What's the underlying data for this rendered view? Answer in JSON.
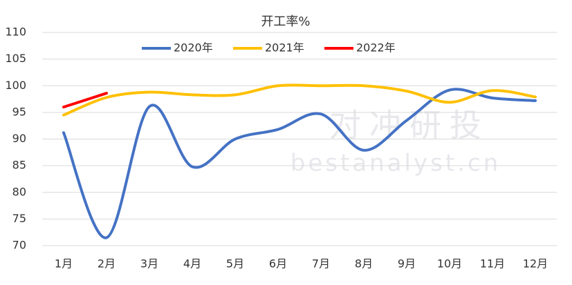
{
  "chart_data": {
    "type": "line",
    "title": "开工率%",
    "categories": [
      "1月",
      "2月",
      "3月",
      "4月",
      "5月",
      "6月",
      "7月",
      "8月",
      "9月",
      "10月",
      "11月",
      "12月"
    ],
    "series": [
      {
        "name": "2020年",
        "color": "#4472c4",
        "values": [
          91.2,
          71.5,
          96.1,
          84.8,
          90.0,
          91.8,
          94.7,
          87.9,
          93.5,
          99.2,
          97.7,
          97.2
        ]
      },
      {
        "name": "2021年",
        "color": "#ffc000",
        "values": [
          94.5,
          97.8,
          98.8,
          98.3,
          98.3,
          100.0,
          100.0,
          100.0,
          99.0,
          96.9,
          99.1,
          97.9
        ]
      },
      {
        "name": "2022年",
        "color": "#ff0000",
        "values": [
          96.0,
          98.6,
          null,
          null,
          null,
          null,
          null,
          null,
          null,
          null,
          null,
          null
        ]
      }
    ],
    "ylim": [
      70,
      110
    ],
    "yticks": [
      70,
      75,
      80,
      85,
      90,
      95,
      100,
      105,
      110
    ],
    "grid": true,
    "legend": "top",
    "smooth": true,
    "watermark": [
      "对冲研投",
      "bestanalyst.cn"
    ]
  }
}
